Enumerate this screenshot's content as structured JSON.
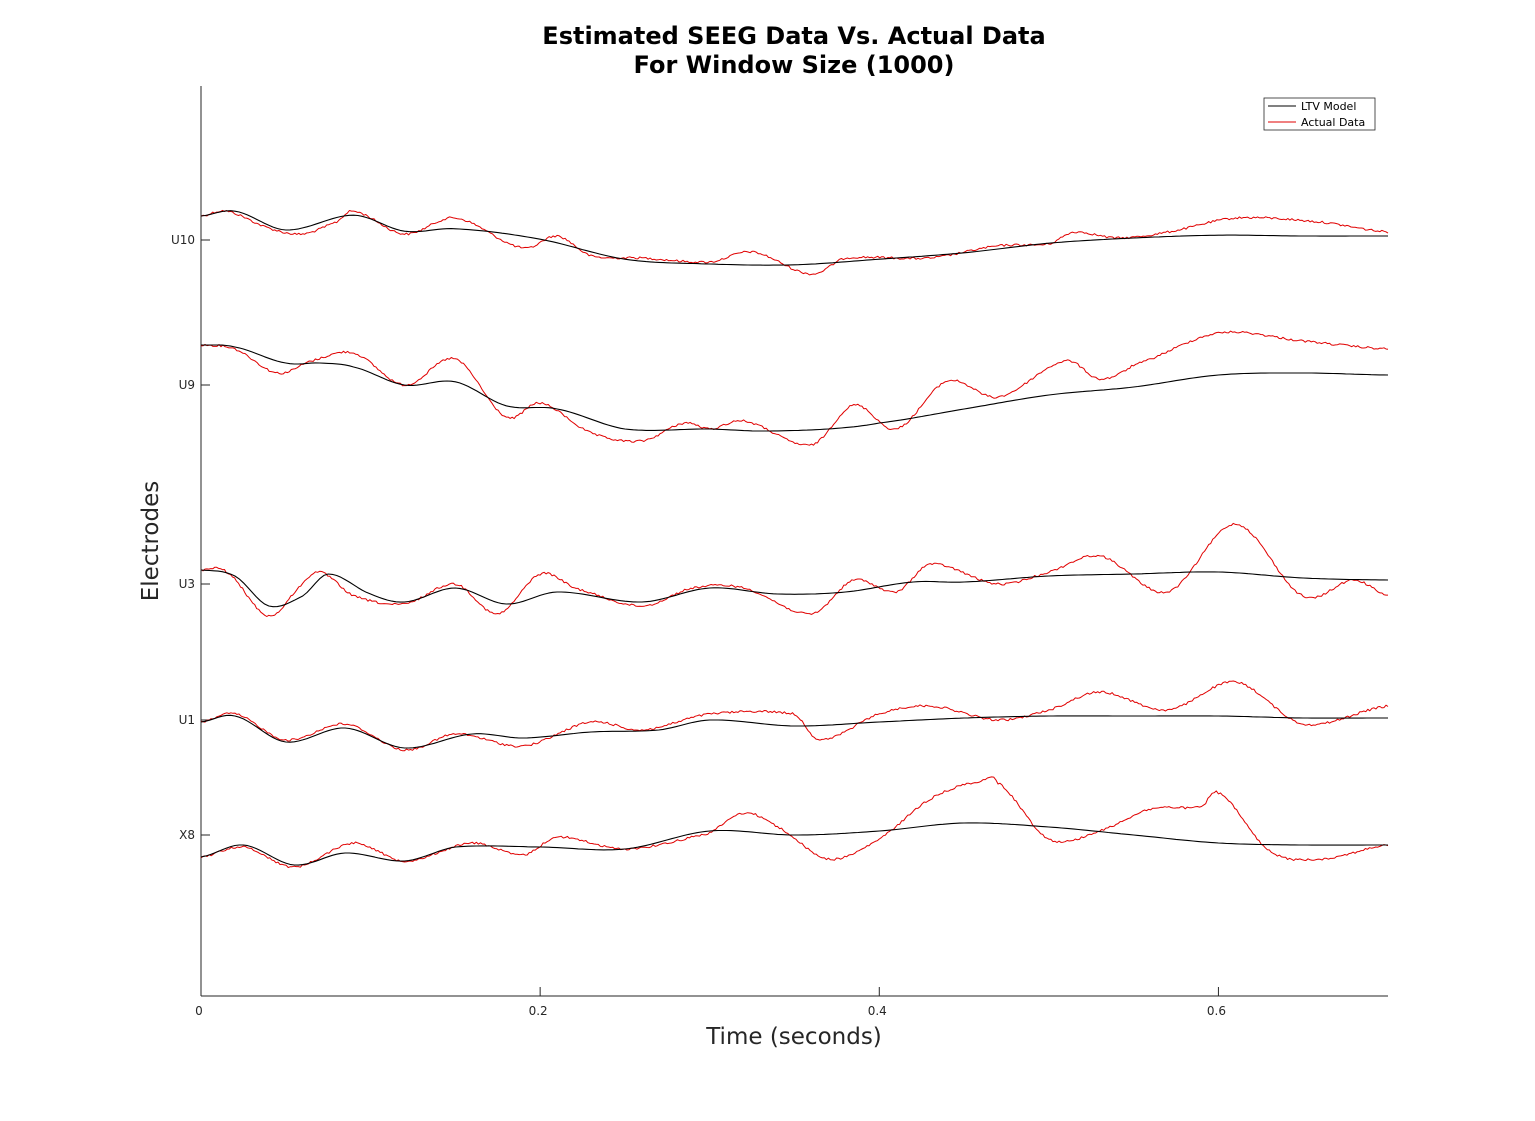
{
  "chart_data": {
    "type": "line",
    "title": "Estimated SEEG Data Vs. Actual Data",
    "subtitle": "For Window Size (1000)",
    "xlabel": "Time (seconds)",
    "ylabel": "Electrodes",
    "xlim": [
      0,
      0.7
    ],
    "x_ticks": [
      {
        "value": 0,
        "label": "0"
      },
      {
        "value": 0.2,
        "label": "0.2"
      },
      {
        "value": 0.4,
        "label": "0.4"
      },
      {
        "value": 0.6,
        "label": "0.6"
      }
    ],
    "y_ticks": [
      "U10",
      "U9",
      "U3",
      "U1",
      "X8"
    ],
    "legend": {
      "position": "top-right",
      "entries": [
        "LTV Model",
        "Actual Data"
      ]
    },
    "grid": false,
    "colors": {
      "LTV Model": "#000000",
      "Actual Data": "#e00000"
    },
    "series": [
      {
        "name": "LTV Model",
        "channels": {
          "U10": [
            [
              0,
              0.6
            ],
            [
              0.02,
              0.72
            ],
            [
              0.05,
              0.25
            ],
            [
              0.09,
              0.62
            ],
            [
              0.12,
              0.22
            ],
            [
              0.15,
              0.28
            ],
            [
              0.2,
              0.02
            ],
            [
              0.25,
              -0.48
            ],
            [
              0.3,
              -0.6
            ],
            [
              0.35,
              -0.62
            ],
            [
              0.4,
              -0.48
            ],
            [
              0.45,
              -0.32
            ],
            [
              0.5,
              -0.08
            ],
            [
              0.55,
              0.05
            ],
            [
              0.6,
              0.12
            ],
            [
              0.65,
              0.1
            ],
            [
              0.7,
              0.1
            ]
          ],
          "U9": [
            [
              0,
              1.0
            ],
            [
              0.02,
              0.95
            ],
            [
              0.05,
              0.55
            ],
            [
              0.07,
              0.55
            ],
            [
              0.09,
              0.45
            ],
            [
              0.12,
              0.0
            ],
            [
              0.15,
              0.08
            ],
            [
              0.18,
              -0.52
            ],
            [
              0.21,
              -0.6
            ],
            [
              0.25,
              -1.1
            ],
            [
              0.3,
              -1.1
            ],
            [
              0.33,
              -1.15
            ],
            [
              0.37,
              -1.1
            ],
            [
              0.4,
              -0.95
            ],
            [
              0.45,
              -0.6
            ],
            [
              0.5,
              -0.25
            ],
            [
              0.55,
              -0.05
            ],
            [
              0.6,
              0.25
            ],
            [
              0.65,
              0.3
            ],
            [
              0.7,
              0.25
            ]
          ],
          "U3": [
            [
              0,
              0.35
            ],
            [
              0.02,
              0.2
            ],
            [
              0.04,
              -0.55
            ],
            [
              0.06,
              -0.3
            ],
            [
              0.075,
              0.25
            ],
            [
              0.1,
              -0.25
            ],
            [
              0.12,
              -0.45
            ],
            [
              0.15,
              -0.1
            ],
            [
              0.18,
              -0.5
            ],
            [
              0.21,
              -0.2
            ],
            [
              0.26,
              -0.45
            ],
            [
              0.3,
              -0.1
            ],
            [
              0.34,
              -0.25
            ],
            [
              0.38,
              -0.2
            ],
            [
              0.42,
              0.05
            ],
            [
              0.45,
              0.05
            ],
            [
              0.5,
              0.2
            ],
            [
              0.55,
              0.25
            ],
            [
              0.6,
              0.3
            ],
            [
              0.65,
              0.15
            ],
            [
              0.7,
              0.1
            ]
          ],
          "U1": [
            [
              0,
              -0.05
            ],
            [
              0.02,
              0.1
            ],
            [
              0.05,
              -0.55
            ],
            [
              0.085,
              -0.2
            ],
            [
              0.12,
              -0.7
            ],
            [
              0.16,
              -0.35
            ],
            [
              0.19,
              -0.45
            ],
            [
              0.23,
              -0.3
            ],
            [
              0.27,
              -0.25
            ],
            [
              0.3,
              0.0
            ],
            [
              0.35,
              -0.15
            ],
            [
              0.4,
              -0.05
            ],
            [
              0.45,
              0.05
            ],
            [
              0.5,
              0.1
            ],
            [
              0.55,
              0.1
            ],
            [
              0.6,
              0.1
            ],
            [
              0.65,
              0.05
            ],
            [
              0.7,
              0.05
            ]
          ],
          "X8": [
            [
              0,
              -0.55
            ],
            [
              0.025,
              -0.25
            ],
            [
              0.055,
              -0.75
            ],
            [
              0.085,
              -0.45
            ],
            [
              0.12,
              -0.65
            ],
            [
              0.15,
              -0.3
            ],
            [
              0.2,
              -0.3
            ],
            [
              0.25,
              -0.35
            ],
            [
              0.3,
              0.1
            ],
            [
              0.35,
              0.0
            ],
            [
              0.4,
              0.1
            ],
            [
              0.45,
              0.3
            ],
            [
              0.5,
              0.2
            ],
            [
              0.55,
              0.0
            ],
            [
              0.6,
              -0.2
            ],
            [
              0.65,
              -0.25
            ],
            [
              0.7,
              -0.25
            ]
          ]
        }
      },
      {
        "name": "Actual Data",
        "channels": {
          "U10": [
            [
              0,
              0.6
            ],
            [
              0.015,
              0.72
            ],
            [
              0.04,
              0.3
            ],
            [
              0.06,
              0.15
            ],
            [
              0.08,
              0.45
            ],
            [
              0.09,
              0.72
            ],
            [
              0.12,
              0.15
            ],
            [
              0.15,
              0.55
            ],
            [
              0.19,
              -0.2
            ],
            [
              0.21,
              0.1
            ],
            [
              0.23,
              -0.4
            ],
            [
              0.26,
              -0.45
            ],
            [
              0.3,
              -0.55
            ],
            [
              0.325,
              -0.3
            ],
            [
              0.36,
              -0.85
            ],
            [
              0.38,
              -0.45
            ],
            [
              0.43,
              -0.45
            ],
            [
              0.47,
              -0.15
            ],
            [
              0.5,
              -0.1
            ],
            [
              0.515,
              0.2
            ],
            [
              0.54,
              0.05
            ],
            [
              0.57,
              0.2
            ],
            [
              0.61,
              0.55
            ],
            [
              0.66,
              0.45
            ],
            [
              0.7,
              0.2
            ]
          ],
          "U9": [
            [
              0,
              1.0
            ],
            [
              0.02,
              0.9
            ],
            [
              0.045,
              0.3
            ],
            [
              0.065,
              0.6
            ],
            [
              0.09,
              0.8
            ],
            [
              0.12,
              0.0
            ],
            [
              0.15,
              0.65
            ],
            [
              0.18,
              -0.8
            ],
            [
              0.2,
              -0.45
            ],
            [
              0.23,
              -1.2
            ],
            [
              0.26,
              -1.4
            ],
            [
              0.285,
              -0.95
            ],
            [
              0.3,
              -1.1
            ],
            [
              0.32,
              -0.9
            ],
            [
              0.36,
              -1.5
            ],
            [
              0.385,
              -0.5
            ],
            [
              0.41,
              -1.1
            ],
            [
              0.44,
              0.1
            ],
            [
              0.47,
              -0.3
            ],
            [
              0.51,
              0.6
            ],
            [
              0.53,
              0.15
            ],
            [
              0.55,
              0.5
            ],
            [
              0.6,
              1.3
            ],
            [
              0.65,
              1.1
            ],
            [
              0.7,
              0.9
            ]
          ],
          "U3": [
            [
              0,
              0.35
            ],
            [
              0.015,
              0.3
            ],
            [
              0.04,
              -0.8
            ],
            [
              0.06,
              0.0
            ],
            [
              0.07,
              0.3
            ],
            [
              0.09,
              -0.3
            ],
            [
              0.12,
              -0.5
            ],
            [
              0.15,
              0.0
            ],
            [
              0.175,
              -0.75
            ],
            [
              0.2,
              0.25
            ],
            [
              0.22,
              -0.1
            ],
            [
              0.26,
              -0.55
            ],
            [
              0.29,
              -0.1
            ],
            [
              0.32,
              -0.1
            ],
            [
              0.36,
              -0.75
            ],
            [
              0.385,
              0.1
            ],
            [
              0.41,
              -0.2
            ],
            [
              0.43,
              0.5
            ],
            [
              0.47,
              0.0
            ],
            [
              0.5,
              0.3
            ],
            [
              0.53,
              0.7
            ],
            [
              0.57,
              -0.2
            ],
            [
              0.61,
              1.5
            ],
            [
              0.65,
              -0.3
            ],
            [
              0.68,
              0.1
            ],
            [
              0.7,
              -0.3
            ]
          ],
          "U1": [
            [
              0,
              -0.05
            ],
            [
              0.02,
              0.15
            ],
            [
              0.05,
              -0.5
            ],
            [
              0.085,
              -0.1
            ],
            [
              0.12,
              -0.75
            ],
            [
              0.15,
              -0.35
            ],
            [
              0.19,
              -0.65
            ],
            [
              0.23,
              -0.05
            ],
            [
              0.26,
              -0.25
            ],
            [
              0.3,
              0.15
            ],
            [
              0.35,
              0.15
            ],
            [
              0.365,
              -0.5
            ],
            [
              0.4,
              0.15
            ],
            [
              0.43,
              0.35
            ],
            [
              0.47,
              0.0
            ],
            [
              0.5,
              0.25
            ],
            [
              0.53,
              0.7
            ],
            [
              0.57,
              0.25
            ],
            [
              0.61,
              0.95
            ],
            [
              0.65,
              -0.1
            ],
            [
              0.7,
              0.35
            ]
          ],
          "X8": [
            [
              0,
              -0.55
            ],
            [
              0.025,
              -0.3
            ],
            [
              0.055,
              -0.8
            ],
            [
              0.09,
              -0.2
            ],
            [
              0.12,
              -0.65
            ],
            [
              0.16,
              -0.2
            ],
            [
              0.19,
              -0.5
            ],
            [
              0.21,
              -0.05
            ],
            [
              0.25,
              -0.35
            ],
            [
              0.3,
              0.05
            ],
            [
              0.32,
              0.55
            ],
            [
              0.34,
              0.2
            ],
            [
              0.37,
              -0.6
            ],
            [
              0.4,
              -0.1
            ],
            [
              0.43,
              0.9
            ],
            [
              0.46,
              1.35
            ],
            [
              0.47,
              1.3
            ],
            [
              0.5,
              -0.1
            ],
            [
              0.53,
              0.1
            ],
            [
              0.56,
              0.65
            ],
            [
              0.59,
              0.7
            ],
            [
              0.6,
              1.05
            ],
            [
              0.63,
              -0.4
            ],
            [
              0.66,
              -0.6
            ],
            [
              0.7,
              -0.25
            ]
          ]
        }
      }
    ]
  }
}
